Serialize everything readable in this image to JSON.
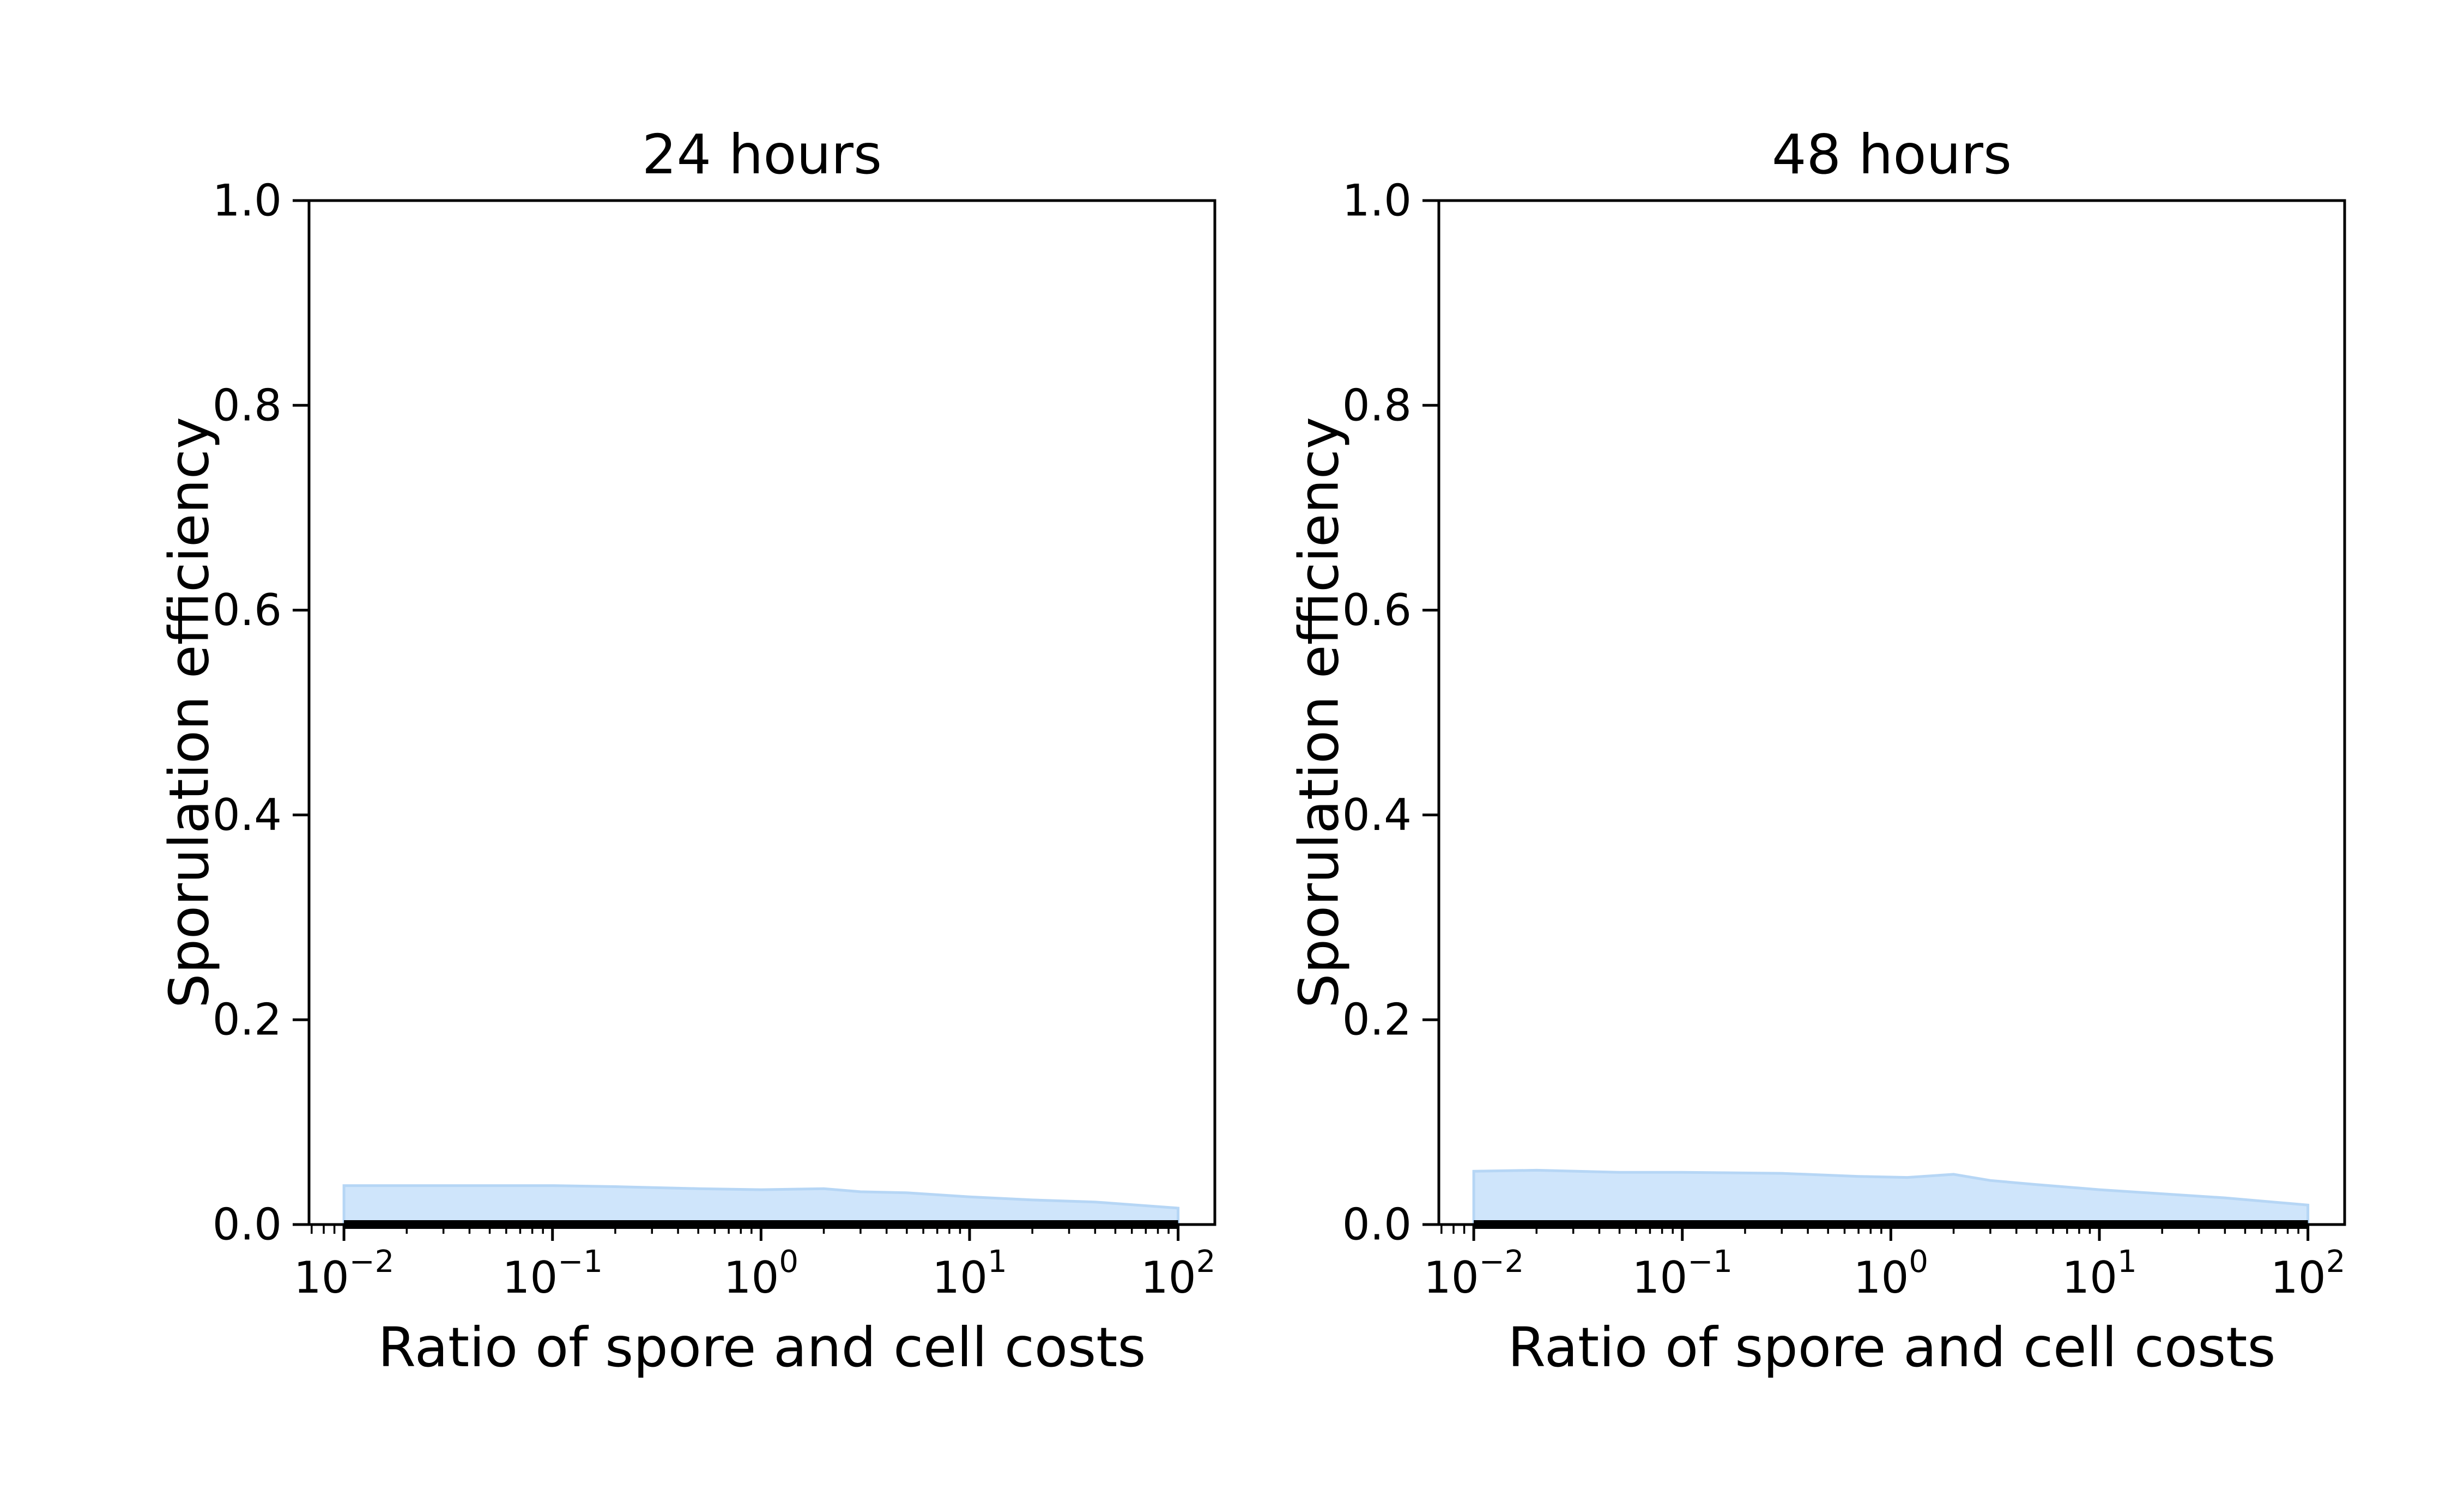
{
  "chart_data": [
    {
      "type": "area",
      "title": "24 hours",
      "xlabel": "Ratio of spore and cell costs",
      "ylabel": "Sporulation efficiency",
      "x_scale": "log",
      "xlim": [
        0.0068,
        150
      ],
      "ylim": [
        0,
        1
      ],
      "grid": false,
      "legend": "none",
      "fill_color": "#cfe5fb",
      "edge_color": "#b6d6f5",
      "line_color": "#000000",
      "yticks": [
        {
          "value": 0.0,
          "label": "0.0"
        },
        {
          "value": 0.2,
          "label": "0.2"
        },
        {
          "value": 0.4,
          "label": "0.4"
        },
        {
          "value": 0.6,
          "label": "0.6"
        },
        {
          "value": 0.8,
          "label": "0.8"
        },
        {
          "value": 1.0,
          "label": "1.0"
        }
      ],
      "xticks": [
        {
          "value": 0.01,
          "base": "10",
          "exp": "−2"
        },
        {
          "value": 0.1,
          "base": "10",
          "exp": "−1"
        },
        {
          "value": 1,
          "base": "10",
          "exp": "0"
        },
        {
          "value": 10,
          "base": "10",
          "exp": "1"
        },
        {
          "value": 100,
          "base": "10",
          "exp": "2"
        }
      ],
      "x": [
        0.01,
        0.02,
        0.05,
        0.1,
        0.2,
        0.5,
        1,
        2,
        3,
        5,
        10,
        20,
        40,
        100
      ],
      "band_lower": [
        0,
        0,
        0,
        0,
        0,
        0,
        0,
        0,
        0,
        0,
        0,
        0,
        0,
        0
      ],
      "band_upper": [
        0.038,
        0.038,
        0.038,
        0.038,
        0.037,
        0.035,
        0.034,
        0.035,
        0.032,
        0.031,
        0.027,
        0.024,
        0.022,
        0.016
      ],
      "line_values": [
        0,
        0,
        0,
        0,
        0,
        0,
        0,
        0,
        0,
        0,
        0,
        0,
        0,
        0
      ]
    },
    {
      "type": "area",
      "title": "48 hours",
      "xlabel": "Ratio of spore and cell costs",
      "ylabel": "Sporulation efficiency",
      "x_scale": "log",
      "xlim": [
        0.0068,
        150
      ],
      "ylim": [
        0,
        1
      ],
      "grid": false,
      "legend": "none",
      "fill_color": "#cfe5fb",
      "edge_color": "#b6d6f5",
      "line_color": "#000000",
      "yticks": [
        {
          "value": 0.0,
          "label": "0.0"
        },
        {
          "value": 0.2,
          "label": "0.2"
        },
        {
          "value": 0.4,
          "label": "0.4"
        },
        {
          "value": 0.6,
          "label": "0.6"
        },
        {
          "value": 0.8,
          "label": "0.8"
        },
        {
          "value": 1.0,
          "label": "1.0"
        }
      ],
      "xticks": [
        {
          "value": 0.01,
          "base": "10",
          "exp": "−2"
        },
        {
          "value": 0.1,
          "base": "10",
          "exp": "−1"
        },
        {
          "value": 1,
          "base": "10",
          "exp": "0"
        },
        {
          "value": 10,
          "base": "10",
          "exp": "1"
        },
        {
          "value": 100,
          "base": "10",
          "exp": "2"
        }
      ],
      "x": [
        0.01,
        0.02,
        0.05,
        0.1,
        0.3,
        0.7,
        1.2,
        2,
        3,
        5,
        10,
        20,
        40,
        100
      ],
      "band_lower": [
        0,
        0,
        0,
        0,
        0,
        0,
        0,
        0,
        0,
        0,
        0,
        0,
        0,
        0
      ],
      "band_upper": [
        0.052,
        0.053,
        0.051,
        0.051,
        0.05,
        0.047,
        0.046,
        0.049,
        0.043,
        0.039,
        0.034,
        0.03,
        0.026,
        0.019
      ],
      "line_values": [
        0,
        0,
        0,
        0,
        0,
        0,
        0,
        0,
        0,
        0,
        0,
        0,
        0,
        0
      ]
    }
  ]
}
